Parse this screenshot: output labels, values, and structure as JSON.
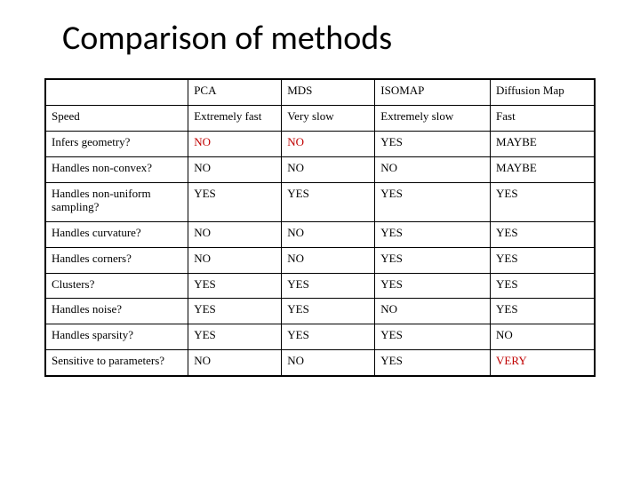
{
  "title": "Comparison of methods",
  "table": {
    "type": "table",
    "columns": [
      "",
      "PCA",
      "MDS",
      "ISOMAP",
      "Diffusion Map"
    ],
    "column_widths_pct": [
      26,
      17,
      17,
      21,
      19
    ],
    "rows": [
      {
        "label": "Speed",
        "cells": [
          {
            "text": "Extremely fast",
            "highlight": false
          },
          {
            "text": "Very slow",
            "highlight": false
          },
          {
            "text": "Extremely slow",
            "highlight": false
          },
          {
            "text": "Fast",
            "highlight": false
          }
        ]
      },
      {
        "label": "Infers geometry?",
        "cells": [
          {
            "text": "NO",
            "highlight": true
          },
          {
            "text": "NO",
            "highlight": true
          },
          {
            "text": "YES",
            "highlight": false
          },
          {
            "text": "MAYBE",
            "highlight": false
          }
        ]
      },
      {
        "label": "Handles non-convex?",
        "cells": [
          {
            "text": "NO",
            "highlight": false
          },
          {
            "text": "NO",
            "highlight": false
          },
          {
            "text": "NO",
            "highlight": false
          },
          {
            "text": "MAYBE",
            "highlight": false
          }
        ]
      },
      {
        "label": "Handles non-uniform sampling?",
        "cells": [
          {
            "text": "YES",
            "highlight": false
          },
          {
            "text": "YES",
            "highlight": false
          },
          {
            "text": "YES",
            "highlight": false
          },
          {
            "text": "YES",
            "highlight": false
          }
        ]
      },
      {
        "label": "Handles curvature?",
        "cells": [
          {
            "text": "NO",
            "highlight": false
          },
          {
            "text": "NO",
            "highlight": false
          },
          {
            "text": "YES",
            "highlight": false
          },
          {
            "text": "YES",
            "highlight": false
          }
        ]
      },
      {
        "label": "Handles corners?",
        "cells": [
          {
            "text": "NO",
            "highlight": false
          },
          {
            "text": "NO",
            "highlight": false
          },
          {
            "text": "YES",
            "highlight": false
          },
          {
            "text": "YES",
            "highlight": false
          }
        ]
      },
      {
        "label": "Clusters?",
        "cells": [
          {
            "text": "YES",
            "highlight": false
          },
          {
            "text": "YES",
            "highlight": false
          },
          {
            "text": "YES",
            "highlight": false
          },
          {
            "text": "YES",
            "highlight": false
          }
        ]
      },
      {
        "label": "Handles noise?",
        "cells": [
          {
            "text": "YES",
            "highlight": false
          },
          {
            "text": "YES",
            "highlight": false
          },
          {
            "text": "NO",
            "highlight": false
          },
          {
            "text": "YES",
            "highlight": false
          }
        ]
      },
      {
        "label": "Handles sparsity?",
        "cells": [
          {
            "text": "YES",
            "highlight": false
          },
          {
            "text": "YES",
            "highlight": false
          },
          {
            "text": "YES",
            "highlight": false
          },
          {
            "text": "NO",
            "highlight": false
          }
        ]
      },
      {
        "label": "Sensitive to parameters?",
        "cells": [
          {
            "text": "NO",
            "highlight": false
          },
          {
            "text": "NO",
            "highlight": false
          },
          {
            "text": "YES",
            "highlight": false
          },
          {
            "text": "VERY",
            "highlight": true
          }
        ]
      }
    ],
    "border_color": "#000000",
    "background_color": "#ffffff",
    "highlight_color": "#c00000",
    "body_font": "Times New Roman",
    "title_font": "Calibri",
    "title_fontsize_pt": 38,
    "cell_fontsize_pt": 13
  }
}
